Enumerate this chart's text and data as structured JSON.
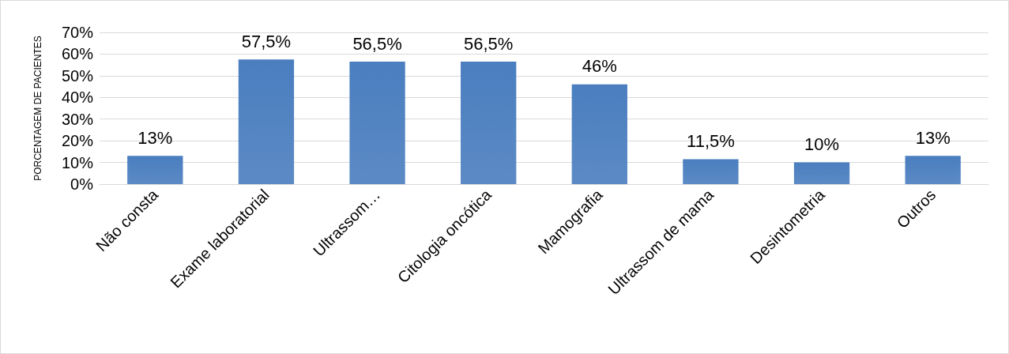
{
  "chart_data": {
    "type": "bar",
    "ylabel": "PORCENTAGEM DE PACIENTES",
    "categories": [
      "Não consta",
      "Exame laboratorial",
      "Ultrassom…",
      "Citologia oncótica",
      "Mamografia",
      "Ultrassom de mama",
      "Desintometria",
      "Outros"
    ],
    "values": [
      13,
      57.5,
      56.5,
      56.5,
      46,
      11.5,
      10,
      13
    ],
    "value_labels": [
      "13%",
      "57,5%",
      "56,5%",
      "56,5%",
      "46%",
      "11,5%",
      "10%",
      "13%"
    ],
    "color": "#4a7ebf",
    "ylim": [
      0,
      70
    ],
    "yticks": [
      {
        "value": 0,
        "label": "0%"
      },
      {
        "value": 10,
        "label": "10%"
      },
      {
        "value": 20,
        "label": "20%"
      },
      {
        "value": 30,
        "label": "30%"
      },
      {
        "value": 40,
        "label": "40%"
      },
      {
        "value": 50,
        "label": "50%"
      },
      {
        "value": 60,
        "label": "60%"
      },
      {
        "value": 70,
        "label": "70%"
      }
    ],
    "grid": "y"
  }
}
